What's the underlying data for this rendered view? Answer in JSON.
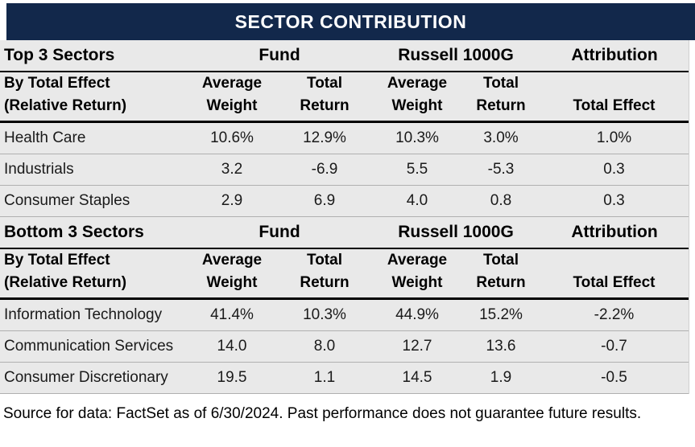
{
  "title": "SECTOR CONTRIBUTION",
  "source_note": "Source for data: FactSet as of 6/30/2024. Past performance does not guarantee future results.",
  "colors": {
    "header_navy": "#12284B",
    "header_text": "#FFFFFF",
    "table_background": "#E9E9E9",
    "row_divider_gray": "#B0B0B0",
    "section_rule_black": "#000000",
    "source_background": "#FFFFFF"
  },
  "sections": [
    {
      "band_label": "Top 3 Sectors",
      "group_headers": [
        "Fund",
        "Russell 1000G",
        "Attribution"
      ],
      "row_header": [
        "By Total Effect",
        "(Relative Return)"
      ],
      "col_headers": [
        [
          "Average",
          "Weight"
        ],
        [
          "Total",
          "Return"
        ],
        [
          "Average",
          "Weight"
        ],
        [
          "Total",
          "Return"
        ],
        [
          "",
          "Total Effect"
        ]
      ],
      "rows": [
        {
          "sector": "Health Care",
          "values": [
            "10.6%",
            "12.9%",
            "10.3%",
            "3.0%",
            "1.0%"
          ]
        },
        {
          "sector": "Industrials",
          "values": [
            "3.2",
            "-6.9",
            "5.5",
            "-5.3",
            "0.3"
          ]
        },
        {
          "sector": "Consumer Staples",
          "values": [
            "2.9",
            "6.9",
            "4.0",
            "0.8",
            "0.3"
          ]
        }
      ]
    },
    {
      "band_label": "Bottom 3 Sectors",
      "group_headers": [
        "Fund",
        "Russell 1000G",
        "Attribution"
      ],
      "row_header": [
        "By Total Effect",
        "(Relative Return)"
      ],
      "col_headers": [
        [
          "Average",
          "Weight"
        ],
        [
          "Total",
          "Return"
        ],
        [
          "Average",
          "Weight"
        ],
        [
          "Total",
          "Return"
        ],
        [
          "",
          "Total Effect"
        ]
      ],
      "rows": [
        {
          "sector": "Information Technology",
          "values": [
            "41.4%",
            "10.3%",
            "44.9%",
            "15.2%",
            "-2.2%"
          ]
        },
        {
          "sector": "Communication Services",
          "values": [
            "14.0",
            "8.0",
            "12.7",
            "13.6",
            "-0.7"
          ]
        },
        {
          "sector": "Consumer Discretionary",
          "values": [
            "19.5",
            "1.1",
            "14.5",
            "1.9",
            "-0.5"
          ]
        }
      ]
    }
  ],
  "chart_data": [
    {
      "type": "table",
      "title": "Top 3 Sectors By Total Effect (Relative Return)",
      "columns": [
        "Sector",
        "Fund Average Weight",
        "Fund Total Return",
        "Russell 1000G Average Weight",
        "Russell 1000G Total Return",
        "Attribution Total Effect"
      ],
      "rows": [
        [
          "Health Care",
          10.6,
          12.9,
          10.3,
          3.0,
          1.0
        ],
        [
          "Industrials",
          3.2,
          -6.9,
          5.5,
          -5.3,
          0.3
        ],
        [
          "Consumer Staples",
          2.9,
          6.9,
          4.0,
          0.8,
          0.3
        ]
      ],
      "units": "percent"
    },
    {
      "type": "table",
      "title": "Bottom 3 Sectors By Total Effect (Relative Return)",
      "columns": [
        "Sector",
        "Fund Average Weight",
        "Fund Total Return",
        "Russell 1000G Average Weight",
        "Russell 1000G Total Return",
        "Attribution Total Effect"
      ],
      "rows": [
        [
          "Information Technology",
          41.4,
          10.3,
          44.9,
          15.2,
          -2.2
        ],
        [
          "Communication Services",
          14.0,
          8.0,
          12.7,
          13.6,
          -0.7
        ],
        [
          "Consumer Discretionary",
          19.5,
          1.1,
          14.5,
          1.9,
          -0.5
        ]
      ],
      "units": "percent"
    }
  ]
}
